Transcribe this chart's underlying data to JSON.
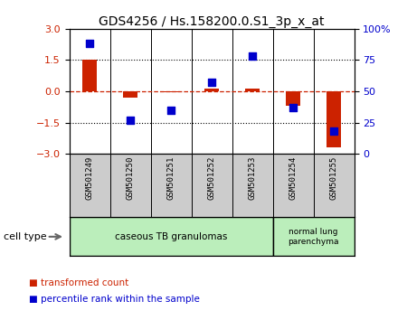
{
  "title": "GDS4256 / Hs.158200.0.S1_3p_x_at",
  "samples": [
    "GSM501249",
    "GSM501250",
    "GSM501251",
    "GSM501252",
    "GSM501253",
    "GSM501254",
    "GSM501255"
  ],
  "transformed_count": [
    1.5,
    -0.3,
    -0.05,
    0.15,
    0.15,
    -0.7,
    -2.7
  ],
  "percentile_rank": [
    88,
    27,
    35,
    57,
    78,
    37,
    18
  ],
  "ylim_left": [
    -3,
    3
  ],
  "ylim_right": [
    0,
    100
  ],
  "yticks_left": [
    -3,
    -1.5,
    0,
    1.5,
    3
  ],
  "yticks_right": [
    0,
    25,
    50,
    75,
    100
  ],
  "ytick_labels_right": [
    "0",
    "25",
    "50",
    "75",
    "100%"
  ],
  "bar_color": "#cc2200",
  "dot_color": "#0000cc",
  "zero_line_color": "#cc2200",
  "hline_color": "#000000",
  "group1_label": "caseous TB granulomas",
  "group1_indices": [
    0,
    1,
    2,
    3,
    4
  ],
  "group2_label": "normal lung\nparenchyma",
  "group2_indices": [
    5,
    6
  ],
  "group1_color": "#bbeebb",
  "group2_color": "#bbeebb",
  "sample_bg_color": "#cccccc",
  "cell_type_label": "cell type",
  "legend_bar_label": "transformed count",
  "legend_dot_label": "percentile rank within the sample",
  "bar_width": 0.35,
  "dot_size": 40,
  "title_fontsize": 10,
  "tick_fontsize": 8,
  "label_fontsize": 8
}
